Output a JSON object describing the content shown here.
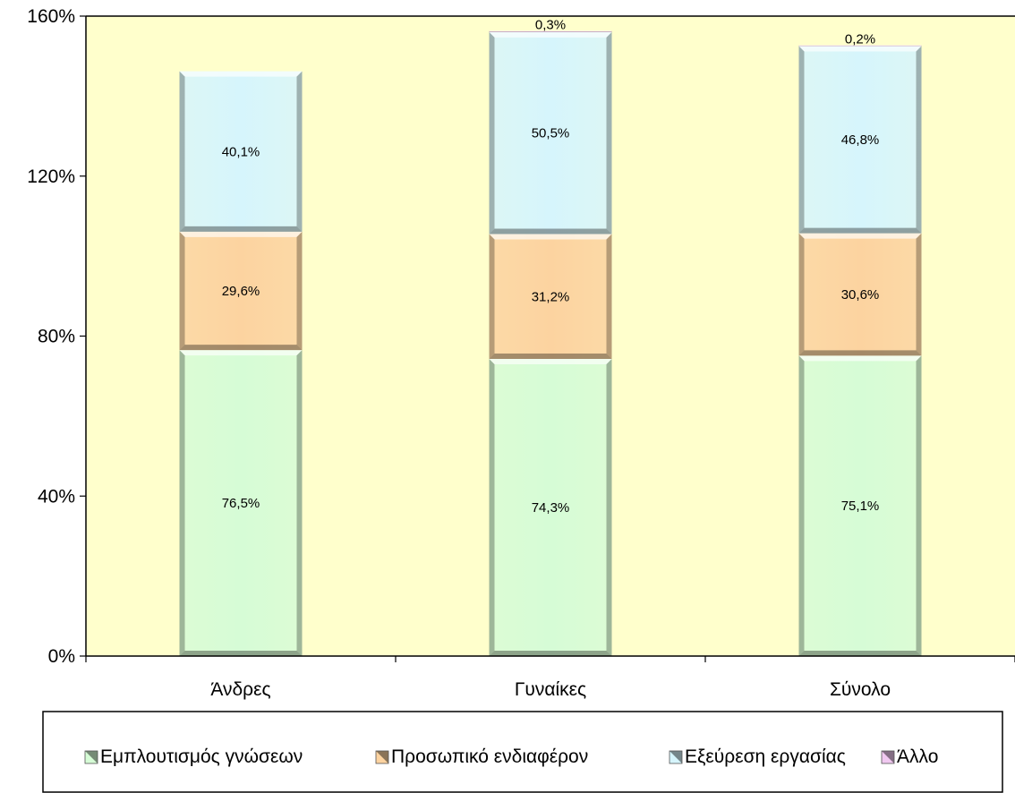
{
  "chart_data": {
    "type": "bar",
    "stacked": true,
    "categories": [
      "Άνδρες",
      "Γυναίκες",
      "Σύνολο"
    ],
    "series": [
      {
        "name": "Εμπλουτισμός γνώσεων",
        "values": [
          76.5,
          74.3,
          75.1
        ],
        "labels": [
          "76,5%",
          "74,3%",
          "75,1%"
        ],
        "color": "#d6fcd6"
      },
      {
        "name": "Προσωπικό ενδιαφέρον",
        "values": [
          29.6,
          31.2,
          30.6
        ],
        "labels": [
          "29,6%",
          "31,2%",
          "30,6%"
        ],
        "color": "#fcd3a0"
      },
      {
        "name": "Εξεύρεση εργασίας",
        "values": [
          40.1,
          50.5,
          46.8
        ],
        "labels": [
          "40,1%",
          "50,5%",
          "46,8%"
        ],
        "color": "#d6f5fc"
      },
      {
        "name": "Άλλο",
        "values": [
          0.0,
          0.3,
          0.2
        ],
        "labels": [
          "",
          "0,3%",
          "0,2%"
        ],
        "color": "#f0c8f0"
      }
    ],
    "yticks": [
      "0%",
      "40%",
      "80%",
      "120%",
      "160%"
    ],
    "ylim": [
      0,
      160
    ],
    "title": "",
    "xlabel": "",
    "ylabel": "",
    "plot_background": "#ffffcc",
    "grid": false,
    "legend_position": "bottom"
  }
}
